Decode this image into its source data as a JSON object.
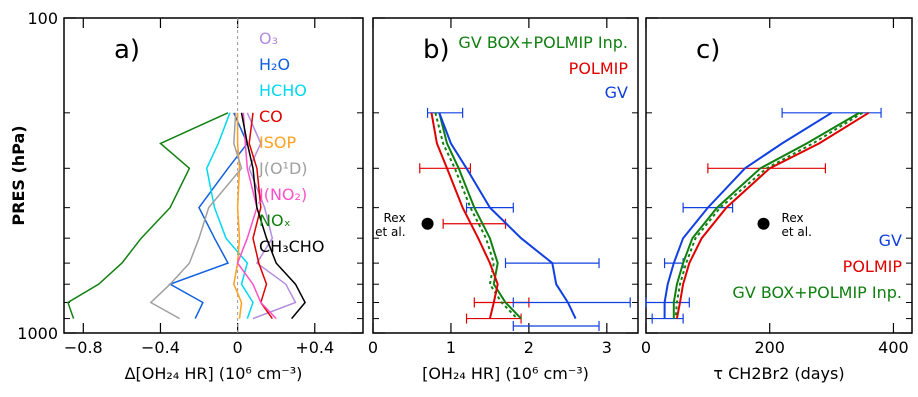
{
  "shared": {
    "ylabel": "PRES (hPa)",
    "y_ticks": [
      "100",
      "1000"
    ],
    "y_scale": "log",
    "ylim": [
      100,
      1000
    ]
  },
  "chart_data": [
    {
      "type": "line",
      "panel_label": "a)",
      "xlim": [
        -0.9,
        0.65
      ],
      "x_ticks": [
        -0.8,
        -0.4,
        0,
        0.4
      ],
      "x_tick_labels": [
        "−0.8",
        "−0.4",
        "0",
        "+0.4"
      ],
      "xlabel": "Δ[OH₂₄ HR] (10⁶ cm⁻³)",
      "zero_line": true,
      "series": [
        {
          "name": "O₃",
          "color": "#b38cdf",
          "x": [
            0.05,
            0.12,
            0.06,
            0.14,
            0.18,
            0.1,
            0.25,
            0.3,
            0.08
          ],
          "y": [
            200,
            250,
            300,
            400,
            500,
            600,
            700,
            800,
            900
          ]
        },
        {
          "name": "H₂O",
          "color": "#1060e0",
          "x": [
            -0.02,
            0.05,
            -0.05,
            -0.2,
            -0.12,
            -0.05,
            -0.35,
            -0.18,
            -0.22
          ],
          "y": [
            200,
            250,
            300,
            400,
            500,
            600,
            700,
            800,
            900
          ]
        },
        {
          "name": "HCHO",
          "color": "#00d8f0",
          "x": [
            -0.04,
            -0.1,
            -0.16,
            -0.12,
            -0.06,
            0.05,
            0.02,
            0.08,
            0.05
          ],
          "y": [
            200,
            250,
            300,
            400,
            500,
            600,
            700,
            800,
            900
          ]
        },
        {
          "name": "CO",
          "color": "#e00000",
          "x": [
            0.08,
            0.06,
            0.1,
            0.12,
            0.08,
            0.11,
            0.15,
            0.12,
            0.18
          ],
          "y": [
            200,
            250,
            300,
            400,
            500,
            600,
            700,
            800,
            900
          ]
        },
        {
          "name": "ISOP",
          "color": "#ffa020",
          "x": [
            0,
            0,
            0.01,
            0.0,
            0.01,
            0.0,
            -0.02,
            0.02,
            0.01
          ],
          "y": [
            200,
            250,
            300,
            400,
            500,
            600,
            700,
            800,
            900
          ]
        },
        {
          "name": "J(O¹D)",
          "color": "#a0a0a0",
          "x": [
            -0.01,
            -0.02,
            0.02,
            -0.15,
            -0.2,
            -0.25,
            -0.35,
            -0.45,
            -0.3
          ],
          "y": [
            200,
            250,
            300,
            400,
            500,
            600,
            700,
            800,
            900
          ]
        },
        {
          "name": "J(NO₂)",
          "color": "#ff50c8",
          "x": [
            0.03,
            0.04,
            0.05,
            0.1,
            0.05,
            0.0,
            0.08,
            0.12,
            0.2
          ],
          "y": [
            200,
            250,
            300,
            400,
            500,
            600,
            700,
            800,
            900
          ]
        },
        {
          "name": "NOₓ",
          "color": "#108010",
          "x": [
            -0.05,
            -0.4,
            -0.25,
            -0.35,
            -0.5,
            -0.6,
            -0.72,
            -0.88,
            -0.85
          ],
          "y": [
            200,
            250,
            300,
            400,
            500,
            600,
            700,
            800,
            900
          ]
        },
        {
          "name": "CH₃CHO",
          "color": "#000000",
          "x": [
            0.02,
            0.05,
            0.08,
            0.1,
            0.15,
            0.2,
            0.3,
            0.35,
            0.28
          ],
          "y": [
            200,
            250,
            300,
            400,
            500,
            600,
            700,
            800,
            900
          ]
        }
      ]
    },
    {
      "type": "line",
      "panel_label": "b)",
      "xlim": [
        0,
        3.4
      ],
      "x_ticks": [
        0,
        1,
        2,
        3
      ],
      "x_tick_labels": [
        "0",
        "1",
        "2",
        "3"
      ],
      "xlabel": "[OH₂₄ HR] (10⁶ cm⁻³)",
      "annotation": "Rex et al.",
      "annotation_point": {
        "x": 0.7,
        "y": 450
      },
      "series": [
        {
          "name": "GV BOX+POLMIP Inp.",
          "color": "#108010",
          "style": "solid",
          "x": [
            0.85,
            0.95,
            1.1,
            1.3,
            1.5,
            1.6,
            1.55,
            1.7,
            1.9
          ],
          "y": [
            200,
            250,
            300,
            400,
            500,
            600,
            700,
            800,
            900
          ]
        },
        {
          "name": "GV BOX+POLMIP Inp. (dotted)",
          "color": "#108010",
          "style": "dotted",
          "x": [
            0.8,
            0.9,
            1.05,
            1.25,
            1.45,
            1.55,
            1.5,
            1.65,
            1.85
          ],
          "y": [
            200,
            250,
            300,
            400,
            500,
            600,
            700,
            800,
            900
          ]
        },
        {
          "name": "POLMIP",
          "color": "#e00000",
          "style": "solid",
          "x": [
            0.75,
            0.82,
            0.95,
            1.15,
            1.35,
            1.5,
            1.6,
            1.55,
            1.5
          ],
          "y": [
            200,
            250,
            300,
            400,
            500,
            600,
            700,
            800,
            900
          ]
        },
        {
          "name": "GV",
          "color": "#1040e0",
          "style": "solid",
          "x": [
            0.85,
            1.0,
            1.2,
            1.5,
            1.9,
            2.3,
            2.35,
            2.5,
            2.6
          ],
          "y": [
            200,
            250,
            300,
            400,
            500,
            600,
            700,
            800,
            900
          ]
        }
      ],
      "error_bars": [
        {
          "color": "#1040e0",
          "y": 200,
          "x_low": 0.7,
          "x_high": 1.15
        },
        {
          "color": "#e00000",
          "y": 300,
          "x_low": 0.6,
          "x_high": 1.25
        },
        {
          "color": "#1040e0",
          "y": 400,
          "x_low": 1.2,
          "x_high": 1.8
        },
        {
          "color": "#e00000",
          "y": 450,
          "x_low": 0.9,
          "x_high": 1.7
        },
        {
          "color": "#1040e0",
          "y": 600,
          "x_low": 1.7,
          "x_high": 2.9
        },
        {
          "color": "#e00000",
          "y": 800,
          "x_low": 1.3,
          "x_high": 2.0
        },
        {
          "color": "#1040e0",
          "y": 800,
          "x_low": 1.8,
          "x_high": 3.3
        },
        {
          "color": "#e00000",
          "y": 900,
          "x_low": 1.2,
          "x_high": 1.9
        },
        {
          "color": "#1040e0",
          "y": 950,
          "x_low": 1.8,
          "x_high": 2.9
        }
      ]
    },
    {
      "type": "line",
      "panel_label": "c)",
      "xlim": [
        0,
        430
      ],
      "x_ticks": [
        0,
        200,
        400
      ],
      "x_tick_labels": [
        "0",
        "200",
        "400"
      ],
      "xlabel": "τ CH2Br2 (days)",
      "annotation": "Rex et al.",
      "annotation_point": {
        "x": 190,
        "y": 450
      },
      "series": [
        {
          "name": "GV",
          "color": "#1040e0",
          "style": "solid",
          "x": [
            300,
            220,
            160,
            100,
            60,
            45,
            35,
            30,
            30
          ],
          "y": [
            200,
            250,
            300,
            400,
            500,
            600,
            700,
            800,
            900
          ]
        },
        {
          "name": "POLMIP",
          "color": "#e00000",
          "style": "solid",
          "x": [
            360,
            280,
            200,
            130,
            90,
            70,
            60,
            55,
            50
          ],
          "y": [
            200,
            250,
            300,
            400,
            500,
            600,
            700,
            800,
            900
          ]
        },
        {
          "name": "GV BOX+POLMIP Inp.",
          "color": "#108010",
          "style": "solid",
          "x": [
            345,
            260,
            185,
            115,
            75,
            60,
            50,
            45,
            45
          ],
          "y": [
            200,
            250,
            300,
            400,
            500,
            600,
            700,
            800,
            900
          ]
        },
        {
          "name": "GV BOX+POLMIP Inp. (dotted)",
          "color": "#108010",
          "style": "dotted",
          "x": [
            350,
            270,
            195,
            120,
            80,
            65,
            55,
            50,
            48
          ],
          "y": [
            200,
            250,
            300,
            400,
            500,
            600,
            700,
            800,
            900
          ]
        }
      ],
      "error_bars": [
        {
          "color": "#1040e0",
          "y": 200,
          "x_low": 220,
          "x_high": 380
        },
        {
          "color": "#e00000",
          "y": 300,
          "x_low": 100,
          "x_high": 290
        },
        {
          "color": "#1040e0",
          "y": 400,
          "x_low": 60,
          "x_high": 140
        },
        {
          "color": "#1040e0",
          "y": 600,
          "x_low": 30,
          "x_high": 60
        },
        {
          "color": "#1040e0",
          "y": 800,
          "x_low": 0,
          "x_high": 70
        },
        {
          "color": "#1040e0",
          "y": 900,
          "x_low": 10,
          "x_high": 60
        }
      ]
    }
  ]
}
